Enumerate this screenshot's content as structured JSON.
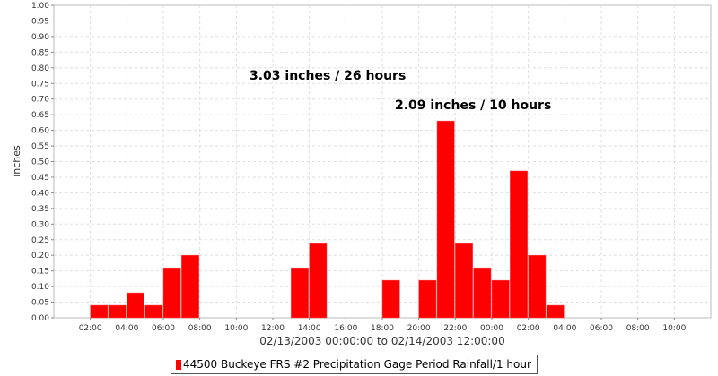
{
  "chart_data": {
    "type": "bar",
    "ylabel": "inches",
    "xlabel": "02/13/2003 00:00:00 to 02/14/2003 12:00:00",
    "x_start": "2003-02-13 00:00",
    "x_end": "2003-02-14 12:00",
    "ylim": [
      0,
      1.0
    ],
    "y_ticks": [
      "0.00",
      "0.05",
      "0.10",
      "0.15",
      "0.20",
      "0.25",
      "0.30",
      "0.35",
      "0.40",
      "0.45",
      "0.50",
      "0.55",
      "0.60",
      "0.65",
      "0.70",
      "0.75",
      "0.80",
      "0.85",
      "0.90",
      "0.95",
      "1.00"
    ],
    "x_ticks": [
      "02:00",
      "04:00",
      "06:00",
      "08:00",
      "10:00",
      "12:00",
      "14:00",
      "16:00",
      "18:00",
      "20:00",
      "22:00",
      "00:00",
      "02:00",
      "04:00",
      "06:00",
      "08:00",
      "10:00"
    ],
    "grid": true,
    "bar_color": "#ff0000",
    "bars": [
      {
        "start": "2003-02-13 02:00",
        "value": 0.04
      },
      {
        "start": "2003-02-13 03:00",
        "value": 0.04
      },
      {
        "start": "2003-02-13 04:00",
        "value": 0.08
      },
      {
        "start": "2003-02-13 05:00",
        "value": 0.04
      },
      {
        "start": "2003-02-13 06:00",
        "value": 0.16
      },
      {
        "start": "2003-02-13 07:00",
        "value": 0.2
      },
      {
        "start": "2003-02-13 13:00",
        "value": 0.16
      },
      {
        "start": "2003-02-13 14:00",
        "value": 0.24
      },
      {
        "start": "2003-02-13 18:00",
        "value": 0.12
      },
      {
        "start": "2003-02-13 20:00",
        "value": 0.12
      },
      {
        "start": "2003-02-13 21:00",
        "value": 0.63
      },
      {
        "start": "2003-02-13 22:00",
        "value": 0.24
      },
      {
        "start": "2003-02-13 23:00",
        "value": 0.16
      },
      {
        "start": "2003-02-14 00:00",
        "value": 0.12
      },
      {
        "start": "2003-02-14 01:00",
        "value": 0.47
      },
      {
        "start": "2003-02-14 02:00",
        "value": 0.2
      },
      {
        "start": "2003-02-14 03:00",
        "value": 0.04
      }
    ],
    "annotations": [
      {
        "text": "3.03 inches / 26 hours"
      },
      {
        "text": "2.09 inches / 10 hours"
      }
    ],
    "legend": {
      "label": "44500 Buckeye FRS #2 Precipitation Gage Period Rainfall/1 hour",
      "placement": "bottom-center"
    }
  }
}
